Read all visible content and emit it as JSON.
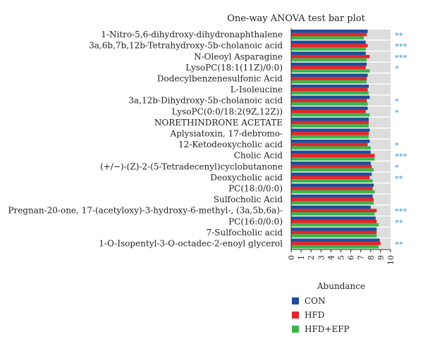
{
  "chart_data": {
    "type": "bar",
    "orientation": "horizontal",
    "title": "One-way ANOVA test bar plot",
    "xlabel": "Abundance",
    "ylabel": "",
    "xlim": [
      0,
      10
    ],
    "xticks": [
      "0",
      "1",
      "2",
      "3",
      "4",
      "5",
      "6",
      "7",
      "8",
      "9",
      "10"
    ],
    "grid": false,
    "legend_position": "bottom",
    "categories": [
      "1-Nitro-5,6-dihydroxy-dihydronaphthalene",
      "3a,6b,7b,12b-Tetrahydroxy-5b-cholanoic acid",
      "N-Oleoyl Asparagine",
      "LysoPC(18:1(11Z)/0:0)",
      "Dodecylbenzenesulfonic Acid",
      "L-Isoleucine",
      "3a,12b-Dihydroxy-5b-cholanoic acid",
      "LysoPC(0:0/18:2(9Z,12Z))",
      "NORETHINDRONE ACETATE",
      "Aplysiatoxin, 17-debromo-",
      "12-Ketodeoxycholic acid",
      "Cholic Acid",
      "(+/−)-(Z)-2-(5-Tetradecenyl)cyclobutanone",
      "Deoxycholic acid",
      "PC(18:0/0:0)",
      "Sulfocholic Acid",
      "Pregnan-20-one, 17-(acetyloxy)-3-hydroxy-6-methyl-, (3a,5b,6a)-",
      "PC(16:0/0:0)",
      "7-Sulfocholic acid",
      "1-O-Isopentyl-3-O-octadec-2-enoyl glycerol"
    ],
    "significance": [
      "**",
      "***",
      "***",
      "*",
      "",
      "",
      "*",
      "*",
      "",
      "",
      "*",
      "***",
      "*",
      "**",
      "",
      "",
      "***",
      "**",
      "",
      "**"
    ],
    "series": [
      {
        "name": "CON",
        "color": "#1f4e9a",
        "values": [
          7.7,
          7.5,
          7.5,
          7.6,
          7.7,
          7.8,
          7.9,
          7.7,
          7.8,
          7.9,
          7.9,
          8.0,
          8.0,
          8.1,
          8.3,
          8.2,
          8.0,
          8.5,
          8.6,
          8.9
        ]
      },
      {
        "name": "HFD",
        "color": "#e3262b",
        "values": [
          7.6,
          7.7,
          7.9,
          7.5,
          7.6,
          7.7,
          7.6,
          7.5,
          7.8,
          7.8,
          7.7,
          8.4,
          8.1,
          7.9,
          8.2,
          8.3,
          8.6,
          8.6,
          8.6,
          9.0
        ]
      },
      {
        "name": "HFD+EFP",
        "color": "#3db54a",
        "values": [
          7.3,
          7.5,
          7.6,
          7.9,
          7.6,
          7.8,
          7.7,
          7.9,
          7.8,
          7.8,
          8.0,
          8.4,
          8.3,
          8.2,
          8.4,
          8.3,
          8.4,
          8.8,
          8.6,
          8.8
        ]
      }
    ]
  }
}
